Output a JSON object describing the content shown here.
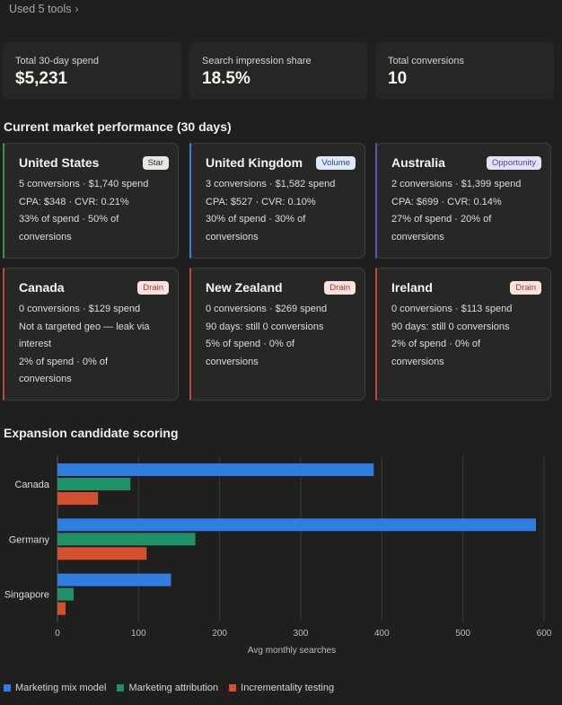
{
  "tools_label": "Used 5 tools",
  "stats": [
    {
      "label": "Total 30-day spend",
      "value": "$5,231"
    },
    {
      "label": "Search impression share",
      "value": "18.5%"
    },
    {
      "label": "Total conversions",
      "value": "10"
    }
  ],
  "market_heading": "Current market performance (30 days)",
  "markets": [
    {
      "name": "United States",
      "badge": "Star",
      "accent": "#3c8f55",
      "badge_bg": "#e8e7e2",
      "badge_fg": "#2b2b2a",
      "lines": [
        "5 conversions · $1,740 spend",
        "CPA: $348 · CVR: 0.21%",
        "33% of spend · 50% of",
        "conversions"
      ]
    },
    {
      "name": "United Kingdom",
      "badge": "Volume",
      "accent": "#3f7fd0",
      "badge_bg": "#dfe8f6",
      "badge_fg": "#2c4d7c",
      "lines": [
        "3 conversions · $1,582 spend",
        "CPA: $527 · CVR: 0.10%",
        "30% of spend · 30% of",
        "conversions"
      ]
    },
    {
      "name": "Australia",
      "badge": "Opportunity",
      "accent": "#5a54b5",
      "badge_bg": "#e4e3f6",
      "badge_fg": "#4a46a0",
      "lines": [
        "2 conversions · $1,399 spend",
        "CPA: $699 · CVR: 0.14%",
        "27% of spend · 20% of",
        "conversions"
      ]
    },
    {
      "name": "Canada",
      "badge": "Drain",
      "accent": "#c0463c",
      "badge_bg": "#f6e3e0",
      "badge_fg": "#a63a30",
      "lines": [
        "0 conversions · $129 spend",
        "Not a targeted geo — leak via",
        "interest",
        "2% of spend · 0% of",
        "conversions"
      ]
    },
    {
      "name": "New Zealand",
      "badge": "Drain",
      "accent": "#c0463c",
      "badge_bg": "#f6e3e0",
      "badge_fg": "#a63a30",
      "lines": [
        "0 conversions · $269 spend",
        "90 days: still 0 conversions",
        "5% of spend · 0% of",
        "conversions"
      ]
    },
    {
      "name": "Ireland",
      "badge": "Drain",
      "accent": "#c0463c",
      "badge_bg": "#f6e3e0",
      "badge_fg": "#a63a30",
      "lines": [
        "0 conversions · $113 spend",
        "90 days: still 0 conversions",
        "2% of spend · 0% of",
        "conversions"
      ]
    }
  ],
  "chart_data": {
    "type": "bar",
    "title": "Expansion candidate scoring",
    "orientation": "horizontal",
    "categories": [
      "Canada",
      "Germany",
      "Singapore"
    ],
    "series": [
      {
        "name": "Marketing mix model",
        "color": "#2f7de0",
        "values": [
          390,
          590,
          140
        ]
      },
      {
        "name": "Marketing attribution",
        "color": "#1f9068",
        "values": [
          90,
          170,
          20
        ]
      },
      {
        "name": "Incrementality testing",
        "color": "#d4502e",
        "values": [
          50,
          110,
          10
        ]
      }
    ],
    "xlabel": "Avg monthly searches",
    "ylabel": "",
    "xlim": [
      0,
      600
    ],
    "xticks": [
      "0",
      "100",
      "200",
      "300",
      "400",
      "500",
      "600"
    ],
    "grid": true,
    "legend": "bottom-left"
  }
}
